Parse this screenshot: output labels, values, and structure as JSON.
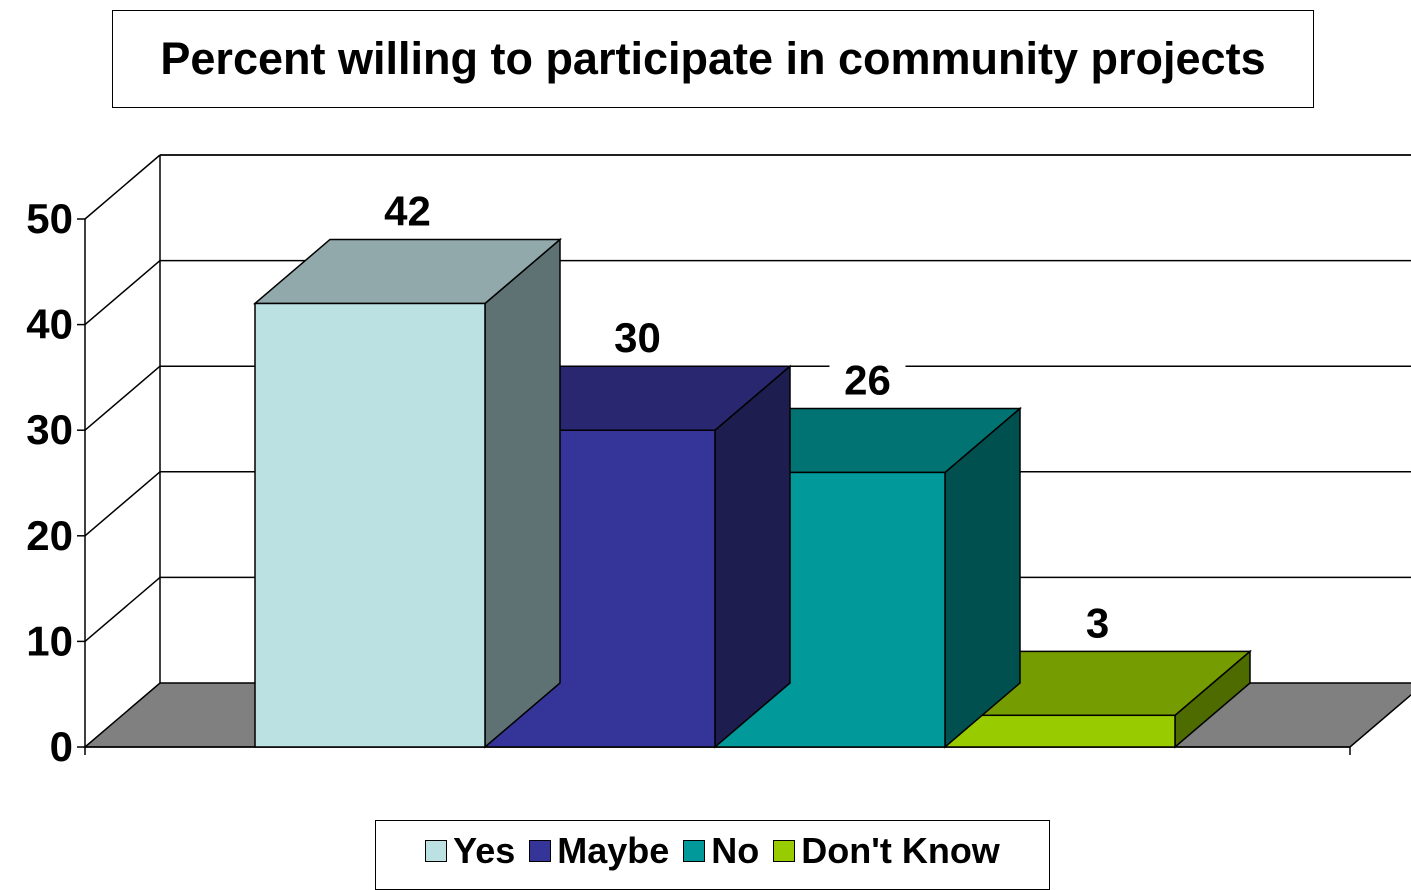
{
  "chart_data": {
    "type": "bar",
    "title": "Percent willing to participate in community projects",
    "categories": [
      "Yes",
      "Maybe",
      "No",
      "Don't Know"
    ],
    "values": [
      42,
      30,
      26,
      3
    ],
    "data_labels": [
      "42",
      "30",
      "26",
      "3"
    ],
    "colors": [
      {
        "front": "#BCE1E3",
        "top": "#91A9AA",
        "side": "#5E7273"
      },
      {
        "front": "#353599",
        "top": "#282770",
        "side": "#1E1D4F"
      },
      {
        "front": "#019999",
        "top": "#017373",
        "side": "#015050"
      },
      {
        "front": "#99CC00",
        "top": "#759C00",
        "side": "#4E6B00"
      }
    ],
    "ylim": [
      0,
      50
    ],
    "yticks": [
      "0",
      "10",
      "20",
      "30",
      "40",
      "50"
    ],
    "grid": true,
    "style": "3d",
    "floor_color": "#808080",
    "legend_position": "bottom"
  }
}
